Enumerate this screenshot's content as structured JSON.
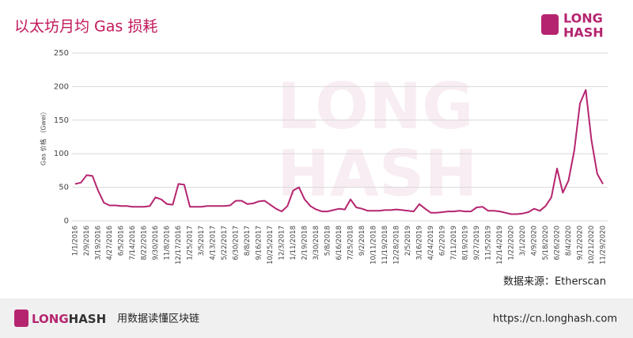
{
  "header": {
    "title": "以太坊月均 Gas 损耗",
    "logo_top": "LONG",
    "logo_bottom": "HASH"
  },
  "chart_data": {
    "type": "line",
    "y_label": "Gas 价格 （Gwei）",
    "categories": [
      "1/1/2016",
      null,
      "2/9/2016",
      null,
      "3/19/2016",
      null,
      "4/27/2016",
      null,
      "6/5/2016",
      null,
      "7/14/2016",
      null,
      "8/22/2016",
      null,
      "9/30/2016",
      null,
      "11/8/2016",
      null,
      "12/17/2016",
      null,
      "1/25/2017",
      null,
      "3/5/2017",
      null,
      "4/13/2017",
      null,
      "5/22/2017",
      null,
      "6/30/2017",
      null,
      "8/8/2017",
      null,
      "9/16/2017",
      null,
      "10/25/2017",
      null,
      "12/3/2017",
      null,
      "1/11/2018",
      null,
      "2/19/2018",
      null,
      "3/30/2018",
      null,
      "5/8/2018",
      null,
      "6/16/2018",
      null,
      "7/25/2018",
      null,
      "9/2/2018",
      null,
      "10/11/2018",
      null,
      "11/19/2018",
      null,
      "12/28/2018",
      null,
      "2/5/2019",
      null,
      "3/16/2019",
      null,
      "4/24/2019",
      null,
      "6/2/2019",
      null,
      "7/11/2019",
      null,
      "8/19/2019",
      null,
      "9/27/2019",
      null,
      "11/5/2019",
      null,
      "12/14/2019",
      null,
      "1/22/2020",
      null,
      "3/1/2020",
      null,
      "4/9/2020",
      null,
      "5/18/2020",
      null,
      "6/26/2020",
      null,
      "8/4/2020",
      null,
      "9/12/2020",
      null,
      "10/21/2020",
      null,
      "11/29/2020"
    ],
    "series": [
      {
        "name": "Gas",
        "color": "#b5256f",
        "values": [
          55,
          57,
          68,
          67,
          45,
          27,
          23,
          23,
          22,
          22,
          21,
          21,
          21,
          22,
          35,
          32,
          25,
          24,
          55,
          54,
          21,
          21,
          21,
          22,
          22,
          22,
          22,
          23,
          30,
          30,
          25,
          26,
          29,
          30,
          24,
          18,
          14,
          22,
          45,
          50,
          32,
          22,
          17,
          14,
          14,
          16,
          18,
          17,
          32,
          20,
          18,
          15,
          15,
          15,
          16,
          16,
          17,
          16,
          15,
          14,
          25,
          18,
          12,
          12,
          13,
          14,
          14,
          15,
          14,
          14,
          20,
          21,
          15,
          15,
          14,
          12,
          10,
          10,
          11,
          13,
          18,
          15,
          22,
          35,
          78,
          42,
          60,
          105,
          175,
          195,
          120,
          70,
          55
        ]
      }
    ],
    "ylim": [
      0,
      250
    ],
    "yticks": [
      0,
      50,
      100,
      150,
      200,
      250
    ],
    "grid": true,
    "source": "数据来源：Etherscan"
  },
  "footer": {
    "logo_a": "LONG",
    "logo_b": "HASH",
    "slogan": "用数据读懂区块链",
    "url": "https://cn.longhash.com"
  }
}
